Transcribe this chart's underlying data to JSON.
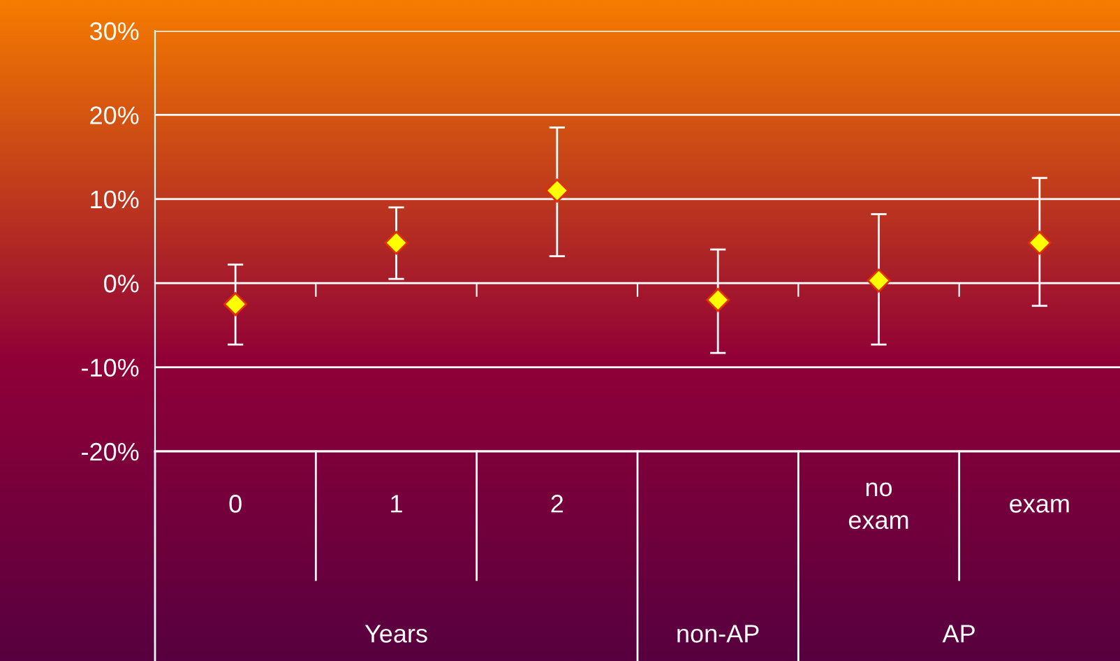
{
  "chart_data": {
    "type": "scatter",
    "categories": [
      "0",
      "1",
      "2",
      null,
      "no\nexam",
      "exam"
    ],
    "values": [
      -2.5,
      4.8,
      11.0,
      -2.0,
      0.3,
      4.8
    ],
    "errors": [
      [
        -7.3,
        2.2
      ],
      [
        0.5,
        9.0
      ],
      [
        3.2,
        18.5
      ],
      [
        -8.3,
        4.0
      ],
      [
        -7.3,
        8.2
      ],
      [
        -2.7,
        12.5
      ]
    ],
    "color": "#ffff00",
    "marker": "diamond",
    "ylim": [
      -20,
      30
    ],
    "yticks": [
      {
        "value": -20,
        "label": "-20%"
      },
      {
        "value": -10,
        "label": "-10%"
      },
      {
        "value": 0,
        "label": "0%"
      },
      {
        "value": 10,
        "label": "10%"
      },
      {
        "value": 20,
        "label": "20%"
      },
      {
        "value": 30,
        "label": "30%"
      }
    ],
    "grid": "y",
    "annotations": [
      "Years",
      "non-AP",
      "AP"
    ]
  }
}
